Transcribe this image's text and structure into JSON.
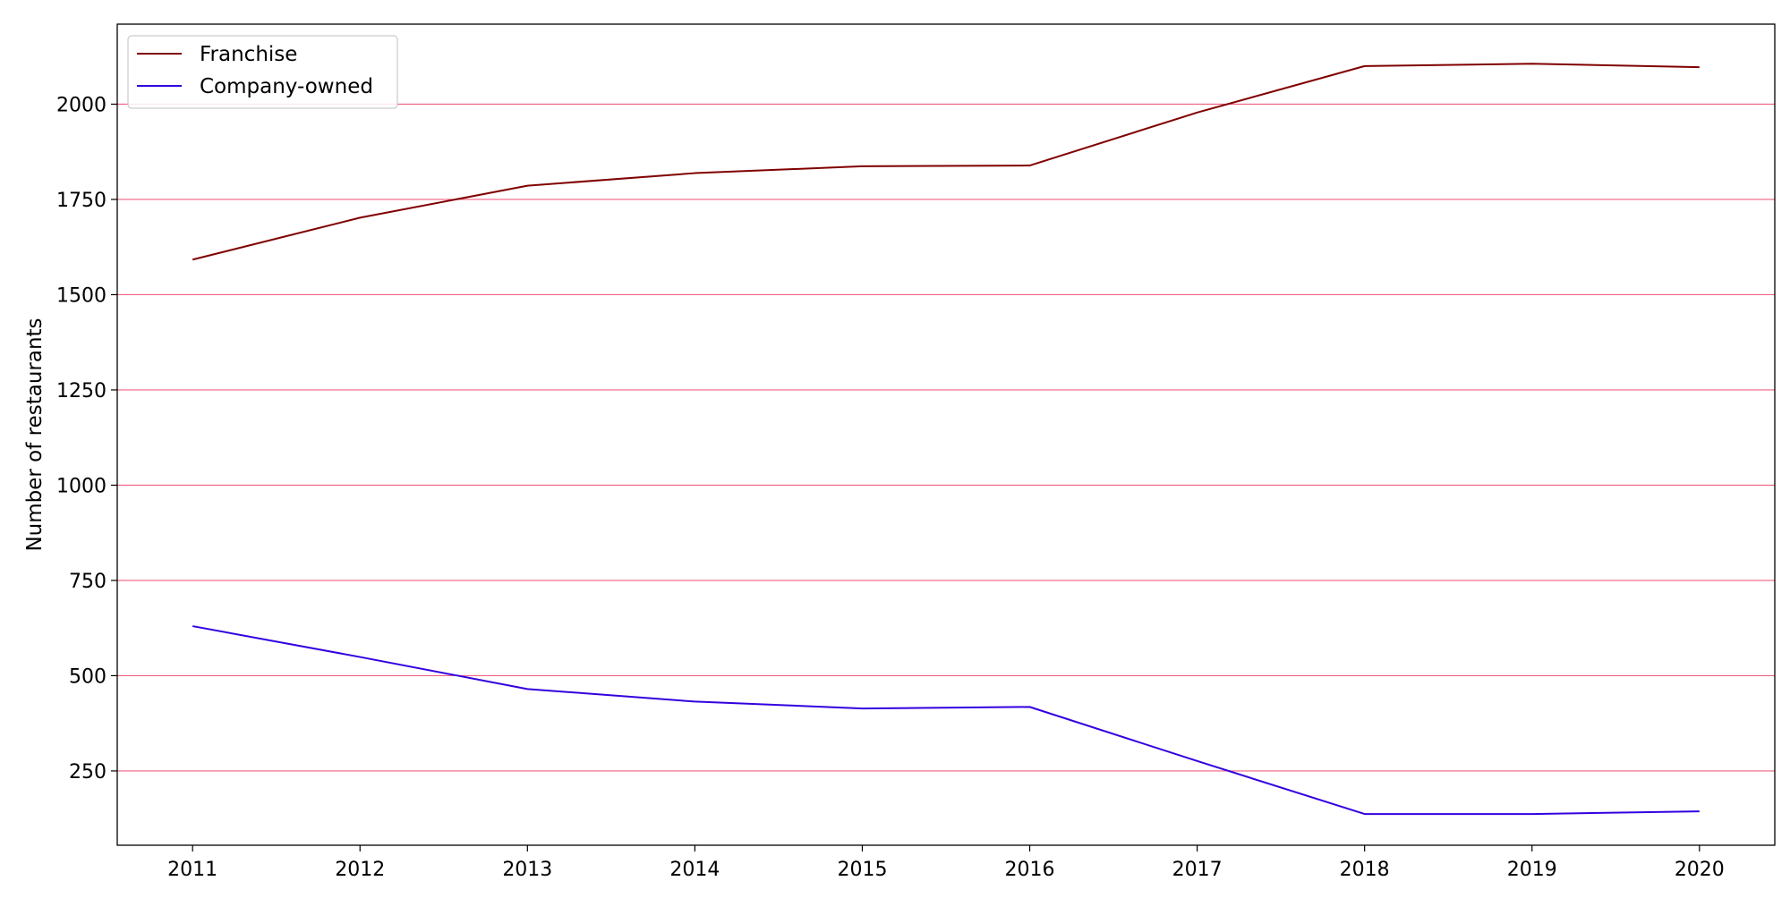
{
  "chart_data": {
    "type": "line",
    "title": "",
    "xlabel": "",
    "ylabel": "Number of restaurants",
    "x": [
      "2011",
      "2012",
      "2013",
      "2014",
      "2015",
      "2016",
      "2017",
      "2018",
      "2019",
      "2020"
    ],
    "xlim": [
      2010.55,
      2020.45
    ],
    "ylim": [
      55,
      2210
    ],
    "yticks": [
      250,
      500,
      750,
      1000,
      1250,
      1500,
      1750,
      2000
    ],
    "grid": "horizontal",
    "grid_color": "#f06080",
    "legend_placement": "top-left",
    "series": [
      {
        "name": "Franchise",
        "color": "#800000",
        "values": [
          1592,
          1702,
          1786,
          1819,
          1837,
          1839,
          1978,
          2100,
          2106,
          2097
        ]
      },
      {
        "name": "Company-owned",
        "color": "#3300e0",
        "values": [
          630,
          549,
          465,
          432,
          414,
          418,
          276,
          137,
          137,
          144
        ]
      }
    ]
  }
}
